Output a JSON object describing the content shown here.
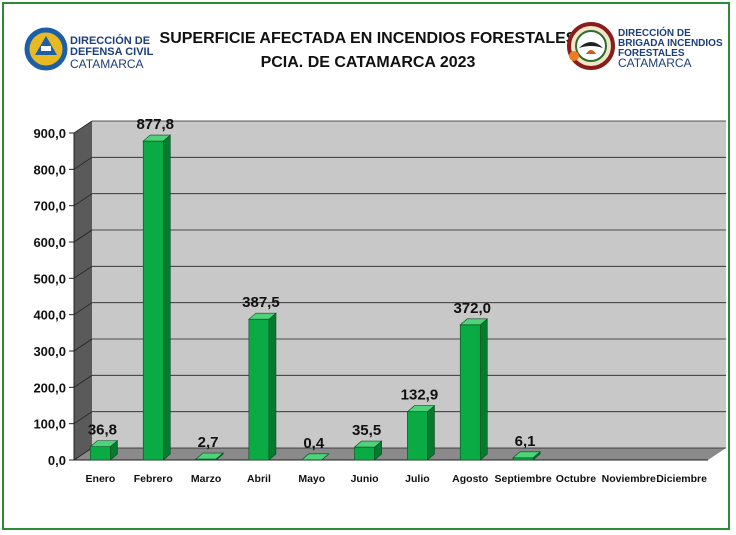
{
  "header": {
    "title_line1": "SUPERFICIE AFECTADA EN INCENDIOS FORESTALES",
    "title_line2": "PCIA. DE CATAMARCA 2023"
  },
  "logos": {
    "left": {
      "line1": "DIRECCIÓN DE",
      "line2": "DEFENSA CIVIL",
      "line3": "CATAMARCA"
    },
    "right": {
      "line1": "DIRECCIÓN DE",
      "line2": "BRIGADA INCENDIOS",
      "line3": "FORESTALES",
      "line4": "CATAMARCA"
    }
  },
  "colors": {
    "bar_front": "#0aab44",
    "bar_side": "#067a2e",
    "bar_top": "#4fd27a",
    "plot_bg": "#c8c8c8",
    "frame": "#2e8b3a"
  },
  "chart_data": {
    "type": "bar",
    "categories": [
      "Enero",
      "Febrero",
      "Marzo",
      "Abril",
      "Mayo",
      "Junio",
      "Julio",
      "Agosto",
      "Septiembre",
      "Octubre",
      "Noviembre",
      "Diciembre"
    ],
    "values": [
      36.8,
      877.8,
      2.7,
      387.5,
      0.4,
      35.5,
      132.9,
      372.0,
      6.1,
      null,
      null,
      null
    ],
    "data_labels": [
      "36,8",
      "877,8",
      "2,7",
      "387,5",
      "0,4",
      "35,5",
      "132,9",
      "372,0",
      "6,1",
      "",
      "",
      ""
    ],
    "ylim": [
      0,
      900
    ],
    "yticks": [
      0,
      100,
      200,
      300,
      400,
      500,
      600,
      700,
      800,
      900
    ],
    "ytick_labels": [
      "0,0",
      "100,0",
      "200,0",
      "300,0",
      "400,0",
      "500,0",
      "600,0",
      "700,0",
      "800,0",
      "900,0"
    ],
    "grid": true,
    "xlabel": "",
    "ylabel": ""
  }
}
